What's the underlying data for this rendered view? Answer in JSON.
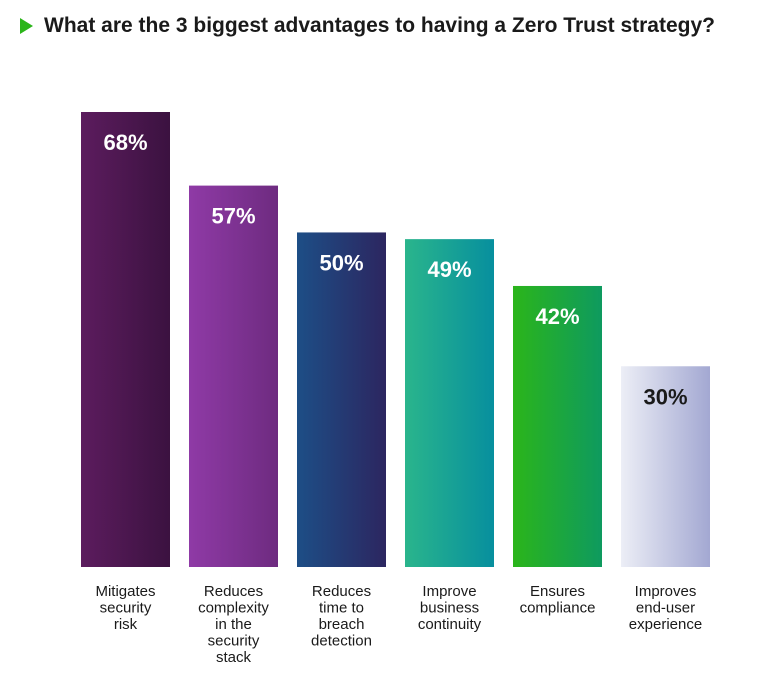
{
  "chart_data": {
    "type": "bar",
    "title": "What are the 3 biggest advantages to having a Zero Trust strategy?",
    "categories": [
      "Mitigates security risk",
      "Reduces complexity in the security stack",
      "Reduces time to breach detection",
      "Improve business continuity",
      "Ensures compliance",
      "Improves end-user experience"
    ],
    "category_lines": [
      [
        "Mitigates",
        "security",
        "risk"
      ],
      [
        "Reduces",
        "complexity",
        "in the",
        "security",
        "stack"
      ],
      [
        "Reduces",
        "time to",
        "breach",
        "detection"
      ],
      [
        "Improve",
        "business",
        "continuity"
      ],
      [
        "Ensures",
        "compliance"
      ],
      [
        "Improves",
        "end-user",
        "experience"
      ]
    ],
    "values": [
      68,
      57,
      50,
      49,
      42,
      30
    ],
    "value_labels": [
      "68%",
      "57%",
      "50%",
      "49%",
      "42%",
      "30%"
    ],
    "ylim": [
      0,
      68
    ],
    "grid": false,
    "legend": "none",
    "colors": [
      [
        "#5c1c5e",
        "#3b1240"
      ],
      [
        "#8f3aa6",
        "#6e2b80"
      ],
      [
        "#1d4e86",
        "#2c2660"
      ],
      [
        "#2ab58c",
        "#078f9e"
      ],
      [
        "#2bb51a",
        "#0e9a5f"
      ],
      [
        "#eceef6",
        "#a3a8d2"
      ]
    ],
    "label_colors": [
      "#ffffff",
      "#ffffff",
      "#ffffff",
      "#ffffff",
      "#ffffff",
      "#1a1a1a"
    ],
    "title_marker_color": "#2bb51a"
  }
}
